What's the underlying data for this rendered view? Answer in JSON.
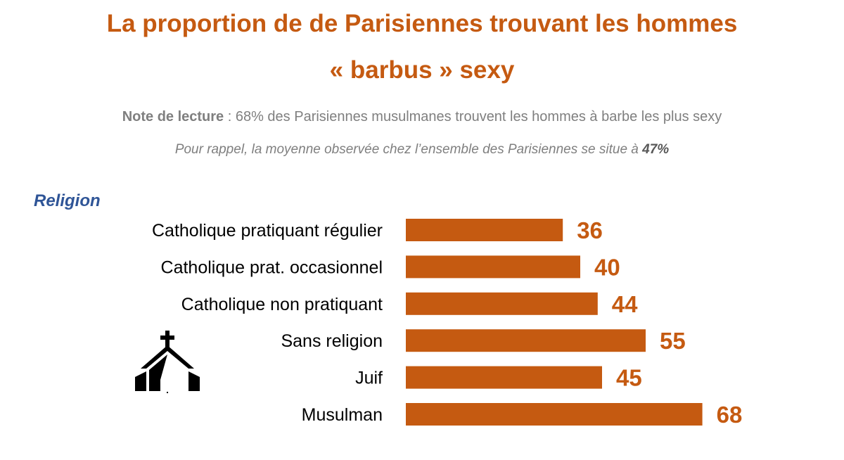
{
  "title_line1": "La proportion de de Parisiennes trouvant les hommes",
  "title_line2": "« barbus » sexy",
  "note": {
    "label": "Note de lecture",
    "text": " : 68% des Parisiennes musulmanes trouvent les hommes à barbe les plus sexy",
    "reminder_text": "Pour rappel, la moyenne observée chez l’ensemble des Parisiennes se situe à ",
    "reminder_value": "47%"
  },
  "section_label": "Religion",
  "icon": "church-icon",
  "colors": {
    "bar": "#c55a11",
    "title": "#c55a11",
    "section": "#2f5597",
    "note": "#7f7f7f"
  },
  "chart_data": {
    "type": "bar",
    "orientation": "horizontal",
    "title": "La proportion de de Parisiennes trouvant les hommes « barbus » sexy",
    "categories": [
      "Catholique pratiquant régulier",
      "Catholique prat. occasionnel",
      "Catholique non pratiquant",
      "Sans religion",
      "Juif",
      "Musulman"
    ],
    "values": [
      36,
      40,
      44,
      55,
      45,
      68
    ],
    "unit": "%",
    "xlim": [
      0,
      100
    ],
    "grid": false,
    "legend": "none"
  }
}
